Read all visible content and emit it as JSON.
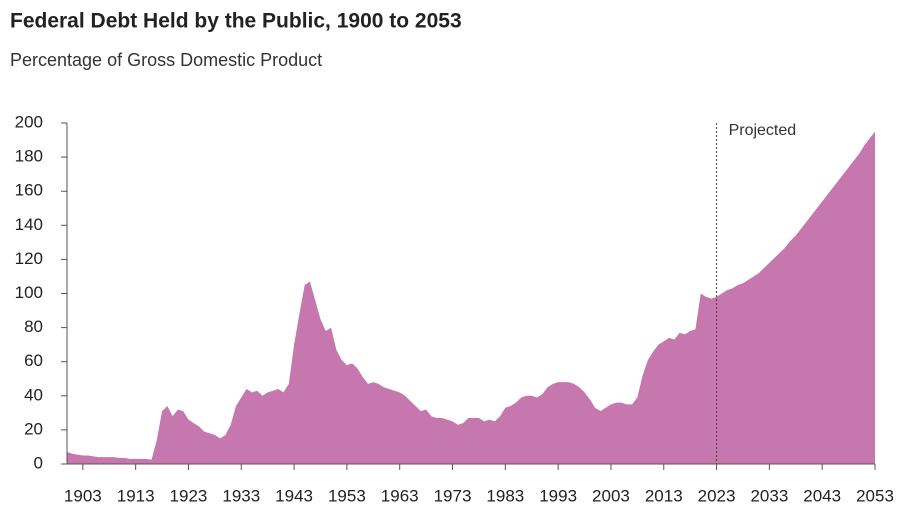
{
  "chart_data": {
    "type": "area",
    "title": "Federal Debt Held by the Public, 1900 to 2053",
    "subtitle": "Percentage of Gross Domestic Product",
    "annotation": {
      "text": "Projected",
      "x": 2023
    },
    "color": "#c678ae",
    "x": [
      1900,
      1901,
      1902,
      1903,
      1904,
      1905,
      1906,
      1907,
      1908,
      1909,
      1910,
      1911,
      1912,
      1913,
      1914,
      1915,
      1916,
      1917,
      1918,
      1919,
      1920,
      1921,
      1922,
      1923,
      1924,
      1925,
      1926,
      1927,
      1928,
      1929,
      1930,
      1931,
      1932,
      1933,
      1934,
      1935,
      1936,
      1937,
      1938,
      1939,
      1940,
      1941,
      1942,
      1943,
      1944,
      1945,
      1946,
      1947,
      1948,
      1949,
      1950,
      1951,
      1952,
      1953,
      1954,
      1955,
      1956,
      1957,
      1958,
      1959,
      1960,
      1961,
      1962,
      1963,
      1964,
      1965,
      1966,
      1967,
      1968,
      1969,
      1970,
      1971,
      1972,
      1973,
      1974,
      1975,
      1976,
      1977,
      1978,
      1979,
      1980,
      1981,
      1982,
      1983,
      1984,
      1985,
      1986,
      1987,
      1988,
      1989,
      1990,
      1991,
      1992,
      1993,
      1994,
      1995,
      1996,
      1997,
      1998,
      1999,
      2000,
      2001,
      2002,
      2003,
      2004,
      2005,
      2006,
      2007,
      2008,
      2009,
      2010,
      2011,
      2012,
      2013,
      2014,
      2015,
      2016,
      2017,
      2018,
      2019,
      2020,
      2021,
      2022,
      2023,
      2024,
      2025,
      2026,
      2027,
      2028,
      2029,
      2030,
      2031,
      2032,
      2033,
      2034,
      2035,
      2036,
      2037,
      2038,
      2039,
      2040,
      2041,
      2042,
      2043,
      2044,
      2045,
      2046,
      2047,
      2048,
      2049,
      2050,
      2051,
      2052,
      2053
    ],
    "values": [
      7,
      6,
      5.5,
      5,
      5,
      4.5,
      4,
      4,
      4,
      4,
      3.5,
      3.5,
      3,
      3,
      3,
      3,
      2.5,
      14,
      31,
      34,
      28,
      32,
      31,
      26,
      24,
      22,
      19,
      18,
      17,
      15,
      17,
      23,
      34,
      39,
      44,
      42,
      43,
      40,
      42,
      43,
      44,
      42,
      47,
      70,
      88,
      105,
      107,
      96,
      85,
      78,
      80,
      67,
      61,
      58,
      59,
      56,
      51,
      47,
      48,
      47,
      45,
      44,
      43,
      42,
      40,
      37,
      34,
      31,
      32,
      28,
      27,
      27,
      26,
      25,
      23,
      24,
      27,
      27,
      27,
      25,
      26,
      25,
      28,
      33,
      34,
      36,
      39,
      40,
      40,
      39,
      41,
      45,
      47,
      48,
      48,
      48,
      47,
      45,
      42,
      38,
      33,
      31,
      33,
      35,
      36,
      36,
      35,
      35,
      39,
      52,
      61,
      66,
      70,
      72,
      74,
      73,
      77,
      76,
      78,
      79,
      100,
      98,
      97,
      98,
      100,
      102,
      103,
      105,
      106,
      108,
      110,
      112,
      115,
      118,
      121,
      124,
      127,
      131,
      134,
      138,
      142,
      146,
      150,
      154,
      158,
      162,
      166,
      170,
      174,
      178,
      182,
      187,
      191,
      195
    ],
    "xlim": [
      1900,
      2053
    ],
    "xticks": [
      1903,
      1913,
      1923,
      1933,
      1943,
      1953,
      1963,
      1973,
      1983,
      1993,
      2003,
      2013,
      2023,
      2033,
      2043,
      2053
    ],
    "ylim": [
      0,
      200
    ],
    "yticks": [
      0,
      20,
      40,
      60,
      80,
      100,
      120,
      140,
      160,
      180,
      200
    ]
  }
}
